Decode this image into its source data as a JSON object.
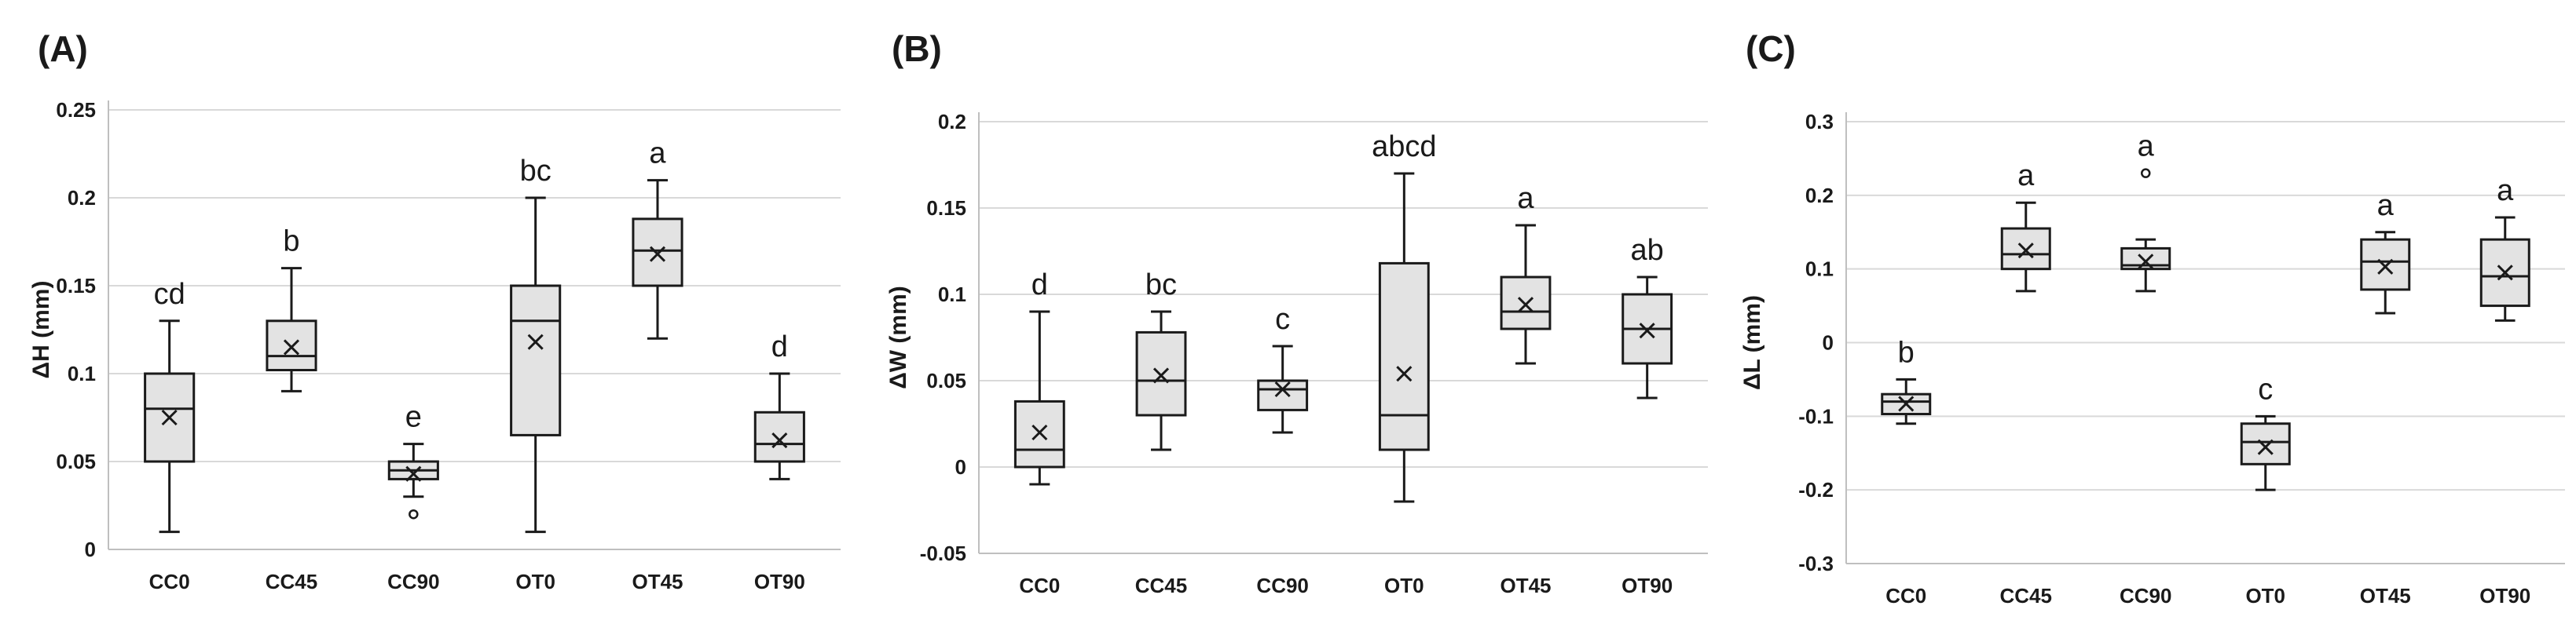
{
  "chart_data": [
    {
      "type": "box",
      "panel_label": "(A)",
      "ylabel": "ΔH (mm)",
      "ylim": [
        0,
        0.25
      ],
      "yticks": [
        0,
        0.05,
        0.1,
        0.15,
        0.2,
        0.25
      ],
      "ytick_labels": [
        "0",
        "0.05",
        "0.1",
        "0.15",
        "0.2",
        "0.25"
      ],
      "categories": [
        "CC0",
        "CC45",
        "CC90",
        "OT0",
        "OT45",
        "OT90"
      ],
      "boxes": [
        {
          "category": "CC0",
          "whisker_low": 0.01,
          "q1": 0.05,
          "median": 0.08,
          "q3": 0.1,
          "whisker_high": 0.13,
          "mean": 0.075,
          "outliers": [],
          "letter": "cd"
        },
        {
          "category": "CC45",
          "whisker_low": 0.09,
          "q1": 0.102,
          "median": 0.11,
          "q3": 0.13,
          "whisker_high": 0.16,
          "mean": 0.115,
          "outliers": [],
          "letter": "b"
        },
        {
          "category": "CC90",
          "whisker_low": 0.03,
          "q1": 0.04,
          "median": 0.045,
          "q3": 0.05,
          "whisker_high": 0.06,
          "mean": 0.043,
          "outliers": [
            0.02
          ],
          "letter": "e"
        },
        {
          "category": "OT0",
          "whisker_low": 0.01,
          "q1": 0.065,
          "median": 0.13,
          "q3": 0.15,
          "whisker_high": 0.2,
          "mean": 0.118,
          "outliers": [],
          "letter": "bc"
        },
        {
          "category": "OT45",
          "whisker_low": 0.12,
          "q1": 0.15,
          "median": 0.17,
          "q3": 0.188,
          "whisker_high": 0.21,
          "mean": 0.168,
          "outliers": [],
          "letter": "a"
        },
        {
          "category": "OT90",
          "whisker_low": 0.04,
          "q1": 0.05,
          "median": 0.06,
          "q3": 0.078,
          "whisker_high": 0.1,
          "mean": 0.062,
          "outliers": [],
          "letter": "d"
        }
      ]
    },
    {
      "type": "box",
      "panel_label": "(B)",
      "ylabel": "ΔW (mm)",
      "ylim": [
        -0.05,
        0.2
      ],
      "yticks": [
        -0.05,
        0,
        0.05,
        0.1,
        0.15,
        0.2
      ],
      "ytick_labels": [
        "-0.05",
        "0",
        "0.05",
        "0.1",
        "0.15",
        "0.2"
      ],
      "categories": [
        "CC0",
        "CC45",
        "CC90",
        "OT0",
        "OT45",
        "OT90"
      ],
      "boxes": [
        {
          "category": "CC0",
          "whisker_low": -0.01,
          "q1": 0.0,
          "median": 0.01,
          "q3": 0.038,
          "whisker_high": 0.09,
          "mean": 0.02,
          "outliers": [],
          "letter": "d"
        },
        {
          "category": "CC45",
          "whisker_low": 0.01,
          "q1": 0.03,
          "median": 0.05,
          "q3": 0.078,
          "whisker_high": 0.09,
          "mean": 0.053,
          "outliers": [],
          "letter": "bc"
        },
        {
          "category": "CC90",
          "whisker_low": 0.02,
          "q1": 0.033,
          "median": 0.045,
          "q3": 0.05,
          "whisker_high": 0.07,
          "mean": 0.045,
          "outliers": [],
          "letter": "c"
        },
        {
          "category": "OT0",
          "whisker_low": -0.02,
          "q1": 0.01,
          "median": 0.03,
          "q3": 0.118,
          "whisker_high": 0.17,
          "mean": 0.054,
          "outliers": [],
          "letter": "abcd"
        },
        {
          "category": "OT45",
          "whisker_low": 0.06,
          "q1": 0.08,
          "median": 0.09,
          "q3": 0.11,
          "whisker_high": 0.14,
          "mean": 0.094,
          "outliers": [],
          "letter": "a"
        },
        {
          "category": "OT90",
          "whisker_low": 0.04,
          "q1": 0.06,
          "median": 0.08,
          "q3": 0.1,
          "whisker_high": 0.11,
          "mean": 0.079,
          "outliers": [],
          "letter": "ab"
        }
      ]
    },
    {
      "type": "box",
      "panel_label": "(C)",
      "ylabel": "ΔL (mm)",
      "ylim": [
        -0.3,
        0.3
      ],
      "yticks": [
        -0.3,
        -0.2,
        -0.1,
        0,
        0.1,
        0.2,
        0.3
      ],
      "ytick_labels": [
        "-0.3",
        "-0.2",
        "-0.1",
        "0",
        "0.1",
        "0.2",
        "0.3"
      ],
      "categories": [
        "CC0",
        "CC45",
        "CC90",
        "OT0",
        "OT45",
        "OT90"
      ],
      "boxes": [
        {
          "category": "CC0",
          "whisker_low": -0.11,
          "q1": -0.097,
          "median": -0.08,
          "q3": -0.07,
          "whisker_high": -0.05,
          "mean": -0.083,
          "outliers": [],
          "letter": "b"
        },
        {
          "category": "CC45",
          "whisker_low": 0.07,
          "q1": 0.1,
          "median": 0.12,
          "q3": 0.155,
          "whisker_high": 0.19,
          "mean": 0.125,
          "outliers": [],
          "letter": "a"
        },
        {
          "category": "CC90",
          "whisker_low": 0.07,
          "q1": 0.1,
          "median": 0.105,
          "q3": 0.128,
          "whisker_high": 0.14,
          "mean": 0.11,
          "outliers": [
            0.23
          ],
          "letter": "a"
        },
        {
          "category": "OT0",
          "whisker_low": -0.2,
          "q1": -0.165,
          "median": -0.135,
          "q3": -0.11,
          "whisker_high": -0.1,
          "mean": -0.142,
          "outliers": [],
          "letter": "c"
        },
        {
          "category": "OT45",
          "whisker_low": 0.04,
          "q1": 0.072,
          "median": 0.11,
          "q3": 0.14,
          "whisker_high": 0.15,
          "mean": 0.103,
          "outliers": [],
          "letter": "a"
        },
        {
          "category": "OT90",
          "whisker_low": 0.03,
          "q1": 0.05,
          "median": 0.09,
          "q3": 0.14,
          "whisker_high": 0.17,
          "mean": 0.095,
          "outliers": [],
          "letter": "a"
        }
      ]
    }
  ]
}
